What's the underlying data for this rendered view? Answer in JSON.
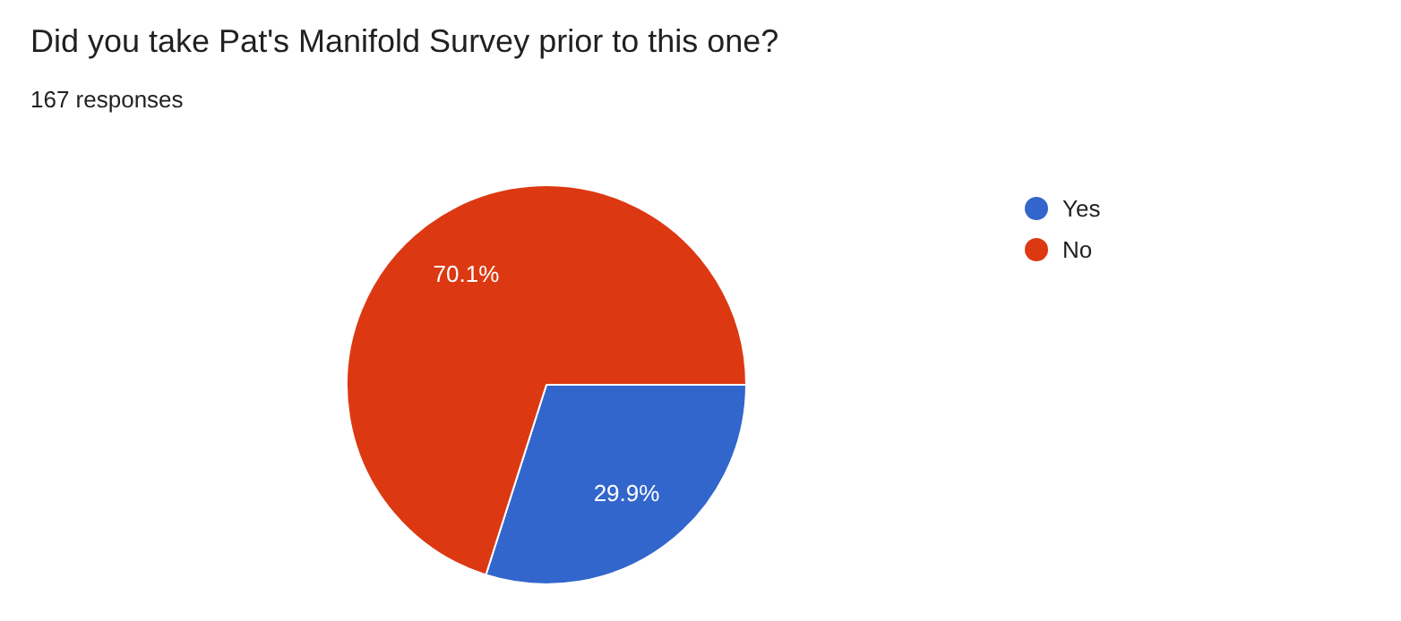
{
  "chart_data": {
    "type": "pie",
    "title": "Did you take Pat's Manifold Survey prior to this one?",
    "subtitle": "167 responses",
    "categories": [
      "Yes",
      "No"
    ],
    "values": [
      29.9,
      70.1
    ],
    "value_labels": [
      "29.9%",
      "70.1%"
    ],
    "colors": [
      "#3366cc",
      "#dc3912"
    ],
    "legend": "top right"
  }
}
